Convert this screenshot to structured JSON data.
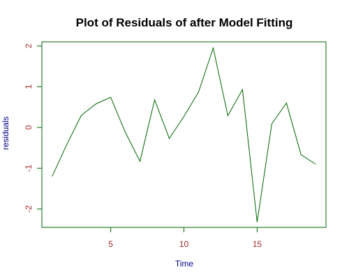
{
  "chart_data": {
    "type": "line",
    "title": "Plot of Residuals of after Model Fitting",
    "xlabel": "Time",
    "ylabel": "residuals",
    "xlim": [
      0.3,
      19.7
    ],
    "ylim": [
      -2.45,
      2.1
    ],
    "x_ticks": [
      5,
      10,
      15
    ],
    "x_tick_labels": [
      "5",
      "10",
      "15"
    ],
    "y_ticks": [
      -2,
      -1,
      0,
      1,
      2
    ],
    "y_tick_labels": [
      "-2",
      "-1",
      "0",
      "1",
      "2"
    ],
    "grid": false,
    "series": [
      {
        "x": [
          1,
          2,
          3,
          4,
          5,
          6,
          7,
          8,
          9,
          10,
          11,
          12,
          13,
          14,
          15,
          16,
          17,
          18,
          19
        ],
        "y": [
          -1.2,
          -0.42,
          0.3,
          0.58,
          0.74,
          -0.12,
          -0.83,
          0.68,
          -0.27,
          0.27,
          0.87,
          1.95,
          0.29,
          0.93,
          -2.32,
          0.09,
          0.6,
          -0.67,
          -0.9
        ],
        "color": "#006400"
      }
    ],
    "colors": {
      "title": "#000000",
      "axis_box": "#006400",
      "tick_labels": "#a52a2a",
      "axis_labels": "#00008b",
      "line": "#006400"
    }
  }
}
